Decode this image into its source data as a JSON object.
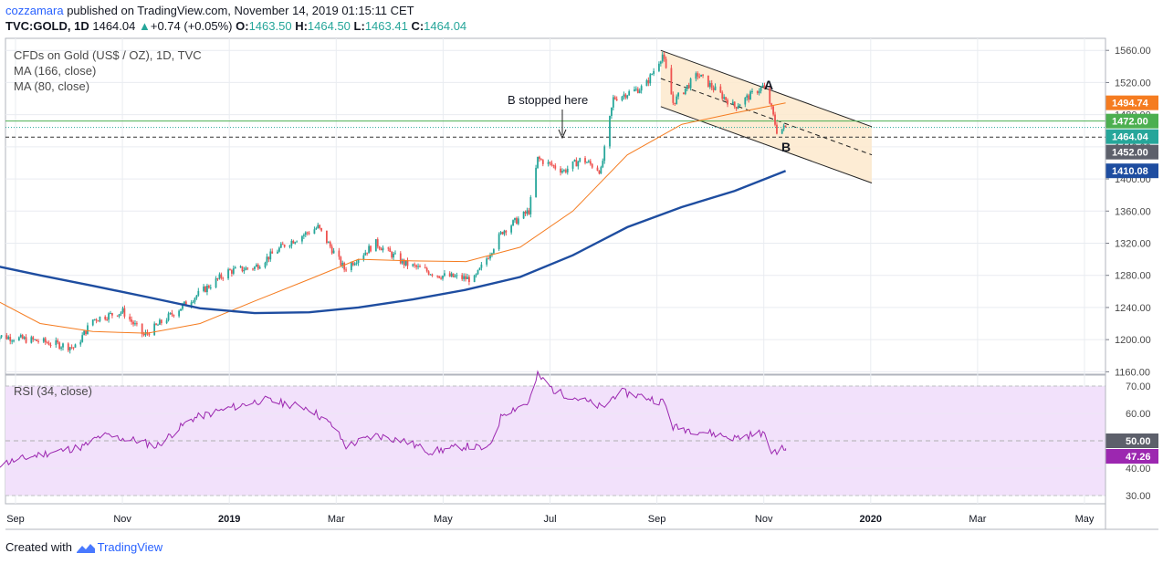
{
  "header": {
    "author": "cozzamara",
    "published": "published on TradingView.com, November 14, 2019 01:15:11 CET",
    "symbol": "TVC:GOLD, 1D",
    "last": "1464.04",
    "change": "+0.74 (+0.05%)",
    "o_label": "O:",
    "o_value": "1463.50",
    "h_label": "H:",
    "h_value": "1464.50",
    "l_label": "L:",
    "l_value": "1463.41",
    "c_label": "C:",
    "c_value": "1464.04"
  },
  "legend": {
    "instrument": "CFDs on Gold (US$ / OZ), 1D, TVC",
    "ma1": "MA (166, close)",
    "ma2": "MA (80, close)",
    "rsi": "RSI (34, close)"
  },
  "annotations": {
    "b_stopped": "B stopped here",
    "a": "A",
    "b": "B"
  },
  "footer": {
    "created_with": "Created with",
    "brand": "TradingView"
  },
  "colors": {
    "up": "#26a69a",
    "down": "#ef5350",
    "ma166": "#1e4da0",
    "ma80": "#f57c20",
    "rsi_line": "#9c27b0",
    "rsi_band": "#f2e1fb",
    "channel": "#fde9cc",
    "green_line": "#4caf50",
    "grid": "#e9ecf1"
  },
  "chart_data": [
    {
      "type": "candlestick",
      "title": "CFDs on Gold (US$ / OZ), 1D, TVC",
      "x_ticks": [
        "Sep",
        "Nov",
        "2019",
        "Mar",
        "May",
        "Jul",
        "Sep",
        "Nov",
        "2020",
        "Mar",
        "May"
      ],
      "y_ticks": [
        "1560.00",
        "1520.00",
        "1480.00",
        "1440.00",
        "1400.00",
        "1360.00",
        "1320.00",
        "1280.00",
        "1240.00",
        "1200.00",
        "1160.00"
      ],
      "ylim": [
        1157,
        1575
      ],
      "price_path": {
        "x": [
          "2018-08-20",
          "2018-09-15",
          "2018-10-05",
          "2018-10-15",
          "2018-11-01",
          "2018-11-13",
          "2018-12-01",
          "2018-12-31",
          "2019-01-15",
          "2019-02-01",
          "2019-02-20",
          "2019-03-07",
          "2019-03-25",
          "2019-04-10",
          "2019-04-30",
          "2019-05-20",
          "2019-06-05",
          "2019-06-20",
          "2019-06-25",
          "2019-07-10",
          "2019-07-20",
          "2019-07-31",
          "2019-08-07",
          "2019-08-25",
          "2019-09-04",
          "2019-09-10",
          "2019-09-24",
          "2019-10-15",
          "2019-10-31",
          "2019-11-04",
          "2019-11-08",
          "2019-11-13"
        ],
        "close": [
          1205,
          1198,
          1190,
          1225,
          1235,
          1205,
          1235,
          1285,
          1290,
          1318,
          1340,
          1288,
          1320,
          1295,
          1280,
          1275,
          1335,
          1360,
          1425,
          1410,
          1425,
          1410,
          1500,
          1515,
          1555,
          1495,
          1530,
          1490,
          1515,
          1495,
          1460,
          1464
        ]
      },
      "ma_166": {
        "x": [
          "2018-08-20",
          "2018-09-15",
          "2018-10-15",
          "2018-11-15",
          "2018-12-15",
          "2019-01-15",
          "2019-02-15",
          "2019-03-15",
          "2019-04-15",
          "2019-05-15",
          "2019-06-15",
          "2019-07-15",
          "2019-08-15",
          "2019-09-15",
          "2019-10-15",
          "2019-11-13"
        ],
        "values": [
          1292,
          1280,
          1267,
          1253,
          1239,
          1233,
          1234,
          1240,
          1250,
          1262,
          1278,
          1305,
          1340,
          1365,
          1385,
          1410.08
        ]
      },
      "ma_80": {
        "x": [
          "2018-08-20",
          "2018-09-15",
          "2018-10-15",
          "2018-11-15",
          "2018-12-15",
          "2019-01-15",
          "2019-02-15",
          "2019-03-15",
          "2019-04-15",
          "2019-05-15",
          "2019-06-15",
          "2019-07-15",
          "2019-08-15",
          "2019-09-15",
          "2019-10-15",
          "2019-11-13"
        ],
        "values": [
          1250,
          1220,
          1210,
          1208,
          1220,
          1248,
          1275,
          1300,
          1298,
          1297,
          1315,
          1360,
          1430,
          1468,
          1482,
          1494.74
        ]
      },
      "price_labels": [
        "1494.74",
        "1472.00",
        "1464.04",
        "1452.00",
        "1410.08"
      ],
      "levels": {
        "green_line": 1472.0,
        "last": 1464.04,
        "dashed": 1452.0
      },
      "channel": {
        "upper": [
          [
            "2019-09-03",
            1560
          ],
          [
            "2020-01-01",
            1465
          ]
        ],
        "lower": [
          [
            "2019-09-03",
            1490
          ],
          [
            "2020-01-01",
            1395
          ]
        ],
        "mid": [
          [
            "2019-09-03",
            1525
          ],
          [
            "2020-01-01",
            1430
          ]
        ]
      }
    },
    {
      "type": "line",
      "title": "RSI (34, close)",
      "y_ticks": [
        "70.00",
        "60.00",
        "50.00",
        "40.00",
        "30.00"
      ],
      "ylim": [
        27,
        74
      ],
      "band": [
        30,
        70
      ],
      "midline": 50,
      "labels": [
        "50.00",
        "47.26"
      ],
      "x": [
        "2018-08-20",
        "2018-09-15",
        "2018-10-10",
        "2018-10-20",
        "2018-11-10",
        "2018-11-20",
        "2018-12-10",
        "2019-01-01",
        "2019-01-20",
        "2019-02-15",
        "2019-03-01",
        "2019-03-08",
        "2019-03-25",
        "2019-04-10",
        "2019-04-25",
        "2019-05-15",
        "2019-05-28",
        "2019-06-05",
        "2019-06-20",
        "2019-06-25",
        "2019-07-05",
        "2019-07-20",
        "2019-08-01",
        "2019-08-10",
        "2019-08-25",
        "2019-09-05",
        "2019-09-10",
        "2019-09-30",
        "2019-10-15",
        "2019-10-31",
        "2019-11-05",
        "2019-11-13"
      ],
      "values": [
        41,
        45,
        48,
        52,
        50,
        48,
        58,
        62,
        65,
        62,
        55,
        48,
        52,
        50,
        46,
        48,
        47,
        60,
        64,
        74,
        68,
        65,
        62,
        68,
        66,
        64,
        55,
        53,
        51,
        53,
        46,
        47.26
      ]
    }
  ]
}
